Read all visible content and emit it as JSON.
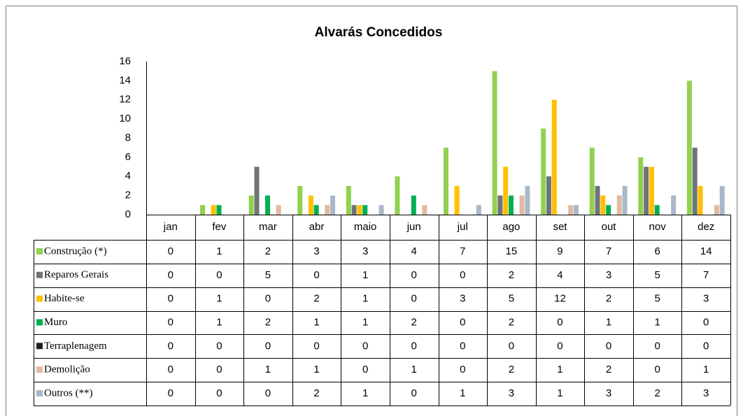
{
  "chart_data": {
    "type": "bar",
    "title": "Alvarás Concedidos",
    "categories": [
      "jan",
      "fev",
      "mar",
      "abr",
      "maio",
      "jun",
      "jul",
      "ago",
      "set",
      "out",
      "nov",
      "dez"
    ],
    "series": [
      {
        "name": "Construção (*)",
        "color": "#92d050",
        "values": [
          0,
          1,
          2,
          3,
          3,
          4,
          7,
          15,
          9,
          7,
          6,
          14
        ]
      },
      {
        "name": "Reparos Gerais",
        "color": "#6f7479",
        "values": [
          0,
          0,
          5,
          0,
          1,
          0,
          0,
          2,
          4,
          3,
          5,
          7
        ]
      },
      {
        "name": "Habite-se",
        "color": "#ffc000",
        "values": [
          0,
          1,
          0,
          2,
          1,
          0,
          3,
          5,
          12,
          2,
          5,
          3
        ]
      },
      {
        "name": "Muro",
        "color": "#00b050",
        "values": [
          0,
          1,
          2,
          1,
          1,
          2,
          0,
          2,
          0,
          1,
          1,
          0
        ]
      },
      {
        "name": "Terraplenagem",
        "color": "#1f1f1f",
        "values": [
          0,
          0,
          0,
          0,
          0,
          0,
          0,
          0,
          0,
          0,
          0,
          0
        ]
      },
      {
        "name": "Demolição",
        "color": "#e3b9a0",
        "values": [
          0,
          0,
          1,
          1,
          0,
          1,
          0,
          2,
          1,
          2,
          0,
          1
        ]
      },
      {
        "name": "Outros (**)",
        "color": "#a9b8c9",
        "values": [
          0,
          0,
          0,
          2,
          1,
          0,
          1,
          3,
          1,
          3,
          2,
          3
        ]
      }
    ],
    "ylim": [
      0,
      16
    ],
    "yticks": [
      0,
      2,
      4,
      6,
      8,
      10,
      12,
      14,
      16
    ],
    "grid": false,
    "legend": "table"
  }
}
